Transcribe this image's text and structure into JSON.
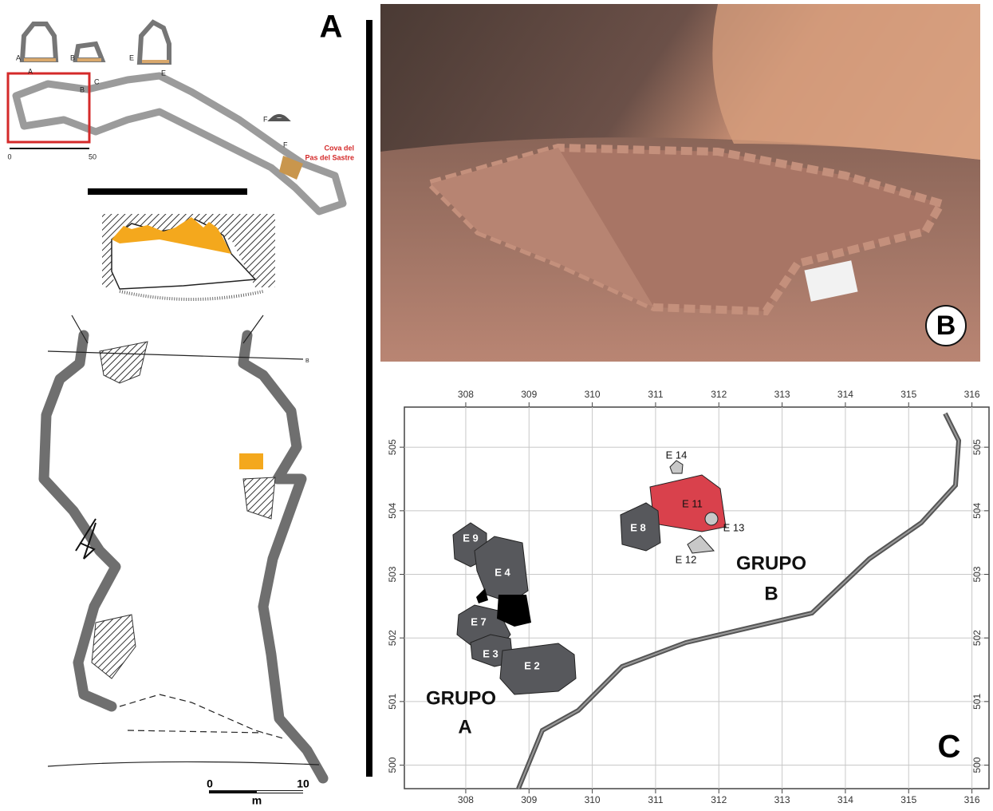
{
  "panel_a": {
    "label": "A",
    "section_labels": [
      "A",
      "B",
      "E",
      "F"
    ],
    "plan_labels": [
      "A",
      "B",
      "C",
      "E",
      "F"
    ],
    "scale": [
      "0",
      "50"
    ],
    "site_name": [
      "Cova del",
      "Pas del Sastre"
    ],
    "plan_section_label": "B",
    "plan_scale": [
      "0",
      "10"
    ],
    "plan_unit": "m"
  },
  "panel_b": {
    "label": "B"
  },
  "panel_c": {
    "label": "C",
    "xlim": [
      307.03,
      316.27
    ],
    "ylim": [
      499.63,
      505.63
    ],
    "xticks": [
      308,
      309,
      310,
      311,
      312,
      313,
      314,
      315,
      316
    ],
    "yticks": [
      500,
      501,
      502,
      503,
      504,
      505
    ],
    "structures": [
      "E 14",
      "E 11",
      "E 8",
      "E 13",
      "E 12",
      "E 9",
      "E 4",
      "E 7",
      "E 3",
      "E 2"
    ],
    "groups": [
      {
        "name": "GRUPO",
        "letter": "A"
      },
      {
        "name": "GRUPO",
        "letter": "B"
      }
    ]
  }
}
